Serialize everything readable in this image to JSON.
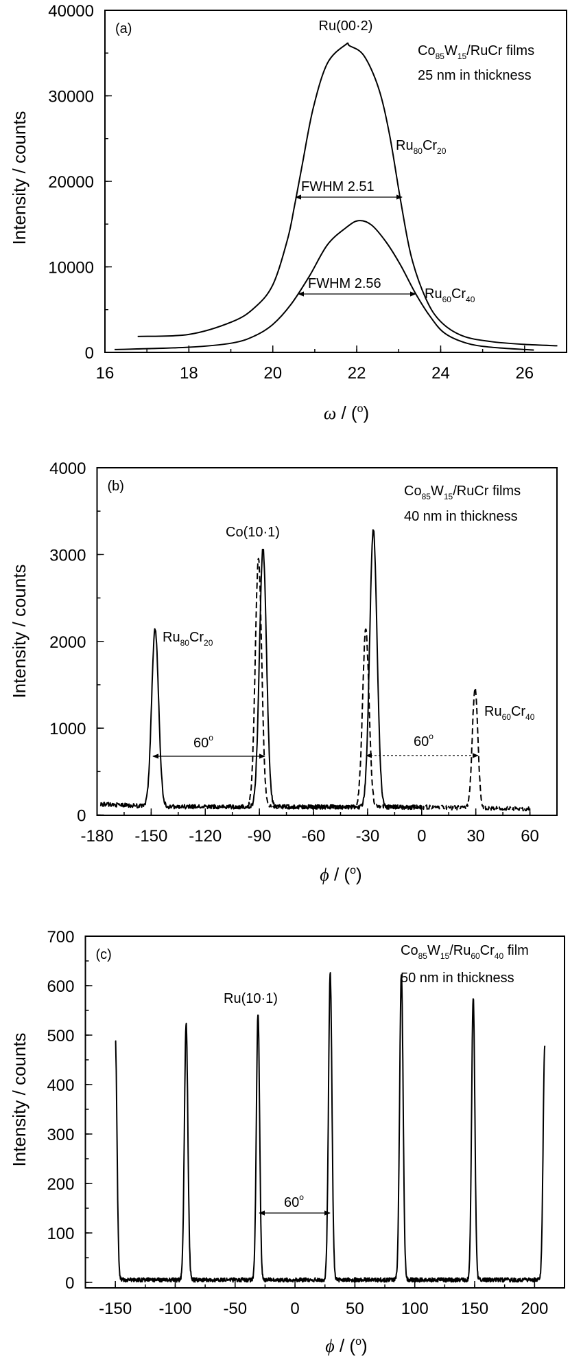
{
  "chart_data": [
    {
      "type": "line",
      "panel_label": "(a)",
      "xlabel": {
        "symbol": "ω",
        "before": " / (",
        "sup": "o",
        "after": ")"
      },
      "ylabel": "Intensity / counts",
      "xlim": [
        16,
        27
      ],
      "ylim": [
        0,
        40000
      ],
      "xticks": [
        16,
        18,
        20,
        22,
        24,
        26
      ],
      "x_minor_step": 1,
      "yticks": [
        0,
        10000,
        20000,
        30000,
        40000
      ],
      "y_minor_step": 5000,
      "grid": false,
      "series": [
        {
          "name": "Ru80Cr20",
          "style": "solid",
          "x": [
            16.78,
            18,
            19.04,
            19.57,
            20,
            20.35,
            20.52,
            20.7,
            20.96,
            21.3,
            21.74,
            21.83,
            22.17,
            22.52,
            22.78,
            23.04,
            23.3,
            23.65,
            24,
            24.52,
            25.2,
            26,
            26.78
          ],
          "y": [
            1860,
            2100,
            3600,
            5250,
            7900,
            13200,
            17200,
            21900,
            28500,
            33800,
            36000,
            35850,
            34700,
            30900,
            25500,
            17900,
            11200,
            6250,
            3600,
            1930,
            1260,
            930,
            770
          ]
        },
        {
          "name": "Ru60Cr40",
          "style": "solid",
          "x": [
            16.23,
            18,
            19.04,
            19.57,
            20,
            20.43,
            20.87,
            21.3,
            21.74,
            22.04,
            22.35,
            22.7,
            23.04,
            23.4,
            23.74,
            24.09,
            24.6,
            25.2,
            26.22
          ],
          "y": [
            330,
            600,
            1100,
            1930,
            3260,
            5590,
            8900,
            12570,
            14560,
            15400,
            14900,
            12900,
            10240,
            6900,
            4260,
            2260,
            1100,
            600,
            270
          ]
        }
      ],
      "annotations": {
        "peak": "Ru(00·2)",
        "sample": [
          {
            "t": "Co"
          },
          {
            "sub": "85"
          },
          {
            "t": "W"
          },
          {
            "sub": "15"
          },
          {
            "t": "/RuCr films"
          }
        ],
        "thickness": "25 nm in thickness",
        "label_top": [
          {
            "t": "Ru"
          },
          {
            "sub": "80"
          },
          {
            "t": "Cr"
          },
          {
            "sub": "20"
          }
        ],
        "label_bottom": [
          {
            "t": "Ru"
          },
          {
            "sub": "60"
          },
          {
            "t": "Cr"
          },
          {
            "sub": "40"
          }
        ],
        "fwhm_top": "FWHM 2.51",
        "fwhm_bottom": "FWHM 2.56"
      }
    },
    {
      "type": "line",
      "panel_label": "(b)",
      "xlabel": {
        "symbol": "ϕ",
        "before": " / (",
        "sup": "o",
        "after": ")"
      },
      "ylabel": "Intensity / counts",
      "xlim": [
        -180,
        75
      ],
      "ylim": [
        0,
        4000
      ],
      "xticks": [
        -180,
        -150,
        -120,
        -90,
        -60,
        -30,
        0,
        30,
        60
      ],
      "x_minor_step": 15,
      "yticks": [
        0,
        1000,
        2000,
        3000,
        4000
      ],
      "y_minor_step": 500,
      "grid": false,
      "series": [
        {
          "name": "Ru80Cr20",
          "style": "solid",
          "x_range": [
            -178,
            0
          ],
          "baseline": [
            [
              -178,
              125
            ],
            [
              -152,
              100
            ],
            [
              -140,
              95
            ],
            [
              0,
              90
            ]
          ],
          "peaks": [
            {
              "center": -147.8,
              "height": 2050,
              "fwhm": 4.5
            },
            {
              "center": -88,
              "height": 2970,
              "fwhm": 4.6
            },
            {
              "center": -26.8,
              "height": 3190,
              "fwhm": 4.8
            }
          ]
        },
        {
          "name": "Ru60Cr40",
          "style": "dashed",
          "x_range": [
            -96,
            60
          ],
          "baseline": [
            [
              -96,
              95
            ],
            [
              0,
              90
            ],
            [
              60,
              70
            ]
          ],
          "peaks": [
            {
              "center": -90.5,
              "height": 2860,
              "fwhm": 4.2
            },
            {
              "center": -31,
              "height": 2040,
              "fwhm": 4.2
            },
            {
              "center": 29.6,
              "height": 1390,
              "fwhm": 3.6
            }
          ]
        }
      ],
      "annotations": {
        "sample": [
          {
            "t": "Co"
          },
          {
            "sub": "85"
          },
          {
            "t": "W"
          },
          {
            "sub": "15"
          },
          {
            "t": "/RuCr films"
          }
        ],
        "thickness": "40 nm in thickness",
        "peak": "Co(10·1)",
        "label_left": [
          {
            "t": "Ru"
          },
          {
            "sub": "80"
          },
          {
            "t": "Cr"
          },
          {
            "sub": "20"
          }
        ],
        "label_right": [
          {
            "t": "Ru"
          },
          {
            "sub": "60"
          },
          {
            "t": "Cr"
          },
          {
            "sub": "40"
          }
        ],
        "angle_left": {
          "value": "60",
          "sup": "o"
        },
        "angle_right": {
          "value": "60",
          "sup": "o"
        }
      }
    },
    {
      "type": "line",
      "panel_label": "(c)",
      "xlabel": {
        "symbol": "ϕ",
        "before": " / (",
        "sup": "o",
        "after": ")"
      },
      "ylabel": "Intensity / counts",
      "xlim": [
        -175,
        225
      ],
      "ylim": [
        0,
        700
      ],
      "xticks": [
        -150,
        -100,
        -50,
        0,
        50,
        100,
        150,
        200
      ],
      "x_minor_step": 25,
      "yticks": [
        0,
        100,
        200,
        300,
        400,
        500,
        600,
        700
      ],
      "y_minor_step": 50,
      "grid": false,
      "series": [
        {
          "name": "Ru60Cr40",
          "style": "solid",
          "x_range": [
            -150,
            208.5
          ],
          "baseline": [
            [
              -150,
              5
            ],
            [
              208.5,
              5
            ]
          ],
          "peaks": [
            {
              "center": -150,
              "height": 488,
              "fwhm": 3.2
            },
            {
              "center": -90.9,
              "height": 518,
              "fwhm": 3.4
            },
            {
              "center": -30.9,
              "height": 540,
              "fwhm": 3.2
            },
            {
              "center": 29.4,
              "height": 619,
              "fwhm": 3.4
            },
            {
              "center": 88.8,
              "height": 621,
              "fwhm": 3.4
            },
            {
              "center": 148.8,
              "height": 572,
              "fwhm": 3.2
            },
            {
              "center": 208.5,
              "height": 471,
              "fwhm": 3.2
            }
          ]
        }
      ],
      "annotations": {
        "sample": [
          {
            "t": "Co"
          },
          {
            "sub": "85"
          },
          {
            "t": "W"
          },
          {
            "sub": "15"
          },
          {
            "t": "/Ru"
          },
          {
            "sub": "60"
          },
          {
            "t": "Cr"
          },
          {
            "sub": "40"
          },
          {
            "t": " film"
          }
        ],
        "thickness": "50 nm in thickness",
        "peak": "Ru(10·1)",
        "angle": {
          "value": "60",
          "sup": "o"
        }
      }
    }
  ]
}
